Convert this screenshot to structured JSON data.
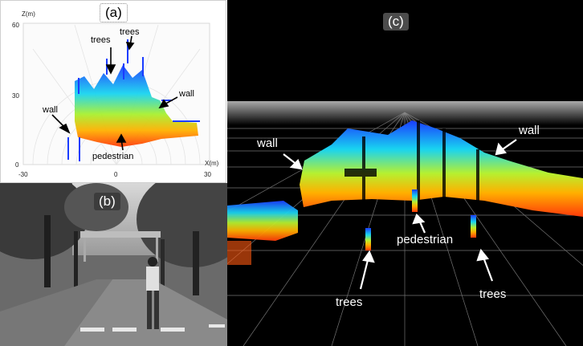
{
  "panel_a": {
    "tag": "(a)",
    "axis_z_label": "Z(m)",
    "axis_x_label": "X(m)",
    "z_ticks": [
      "60",
      "30",
      "0"
    ],
    "x_ticks": [
      "-30",
      "0",
      "30"
    ],
    "labels": {
      "trees_left": "trees",
      "trees_right": "trees",
      "wall_left": "wall",
      "wall_right": "wall",
      "pedestrian": "pedestrian"
    }
  },
  "panel_b": {
    "tag": "(b)"
  },
  "panel_c": {
    "tag": "(c)",
    "labels": {
      "wall_left": "wall",
      "wall_right": "wall",
      "pedestrian": "pedestrian",
      "trees_left": "trees",
      "trees_right": "trees"
    }
  },
  "colors": {
    "arrow_light": "#ffffff",
    "arrow_dark": "#000000",
    "scan_blue": "#1a3cff",
    "scan_cyan": "#19d4f0",
    "scan_yellow": "#ffd21e",
    "scan_red": "#ff3a0a"
  }
}
